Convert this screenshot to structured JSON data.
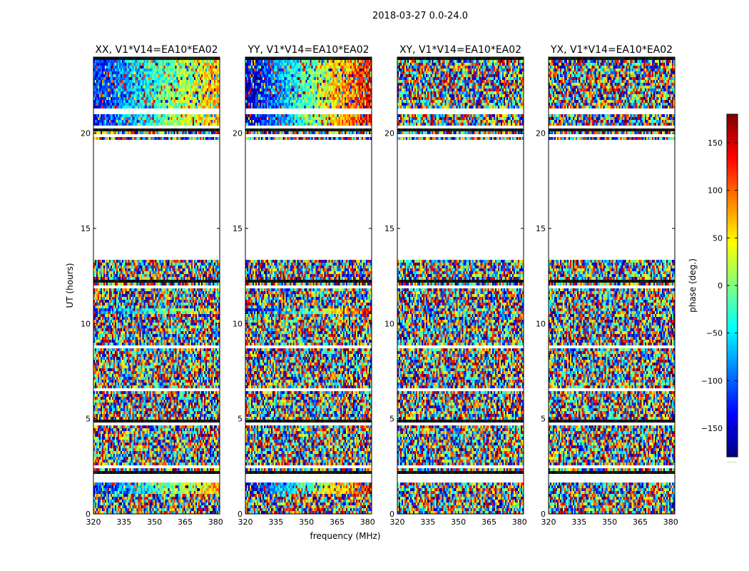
{
  "chart_data": {
    "type": "heatmap",
    "title": "2018-03-27 0.0-24.0",
    "xlabel": "frequency (MHz)",
    "ylabel": "UT (hours)",
    "xlim": [
      320,
      382
    ],
    "ylim": [
      0,
      24
    ],
    "x_ticks": [
      320,
      335,
      350,
      365,
      380
    ],
    "y_ticks": [
      0,
      5,
      10,
      15,
      20
    ],
    "panels": [
      {
        "name": "XX, V1*V14=EA10*EA02",
        "pol": "XX",
        "structure": "gradient"
      },
      {
        "name": "YY, V1*V14=EA10*EA02",
        "pol": "YY",
        "structure": "gradient"
      },
      {
        "name": "XY, V1*V14=EA10*EA02",
        "pol": "XY",
        "structure": "noise"
      },
      {
        "name": "YX, V1*V14=EA10*EA02",
        "pol": "YX",
        "structure": "noise"
      }
    ],
    "flagged_ut_ranges": [
      [
        19.75,
        19.9
      ],
      [
        13.5,
        19.62
      ],
      [
        20.3,
        20.45
      ],
      [
        21.0,
        21.32
      ],
      [
        8.7,
        8.85
      ],
      [
        2.0,
        2.1
      ],
      [
        1.62,
        1.98
      ]
    ],
    "colorbar": {
      "label": "phase (deg.)",
      "range": [
        -180,
        180
      ],
      "ticks": [
        -150,
        -100,
        -50,
        0,
        50,
        100,
        150
      ],
      "tick_labels": [
        "−150",
        "−100",
        "−50",
        "0",
        "50",
        "100",
        "150"
      ],
      "extension_label": "......"
    },
    "colormap": [
      "#00007f",
      "#0000ff",
      "#007fff",
      "#00ffff",
      "#7fff7f",
      "#ffff00",
      "#ff7f00",
      "#ff0000",
      "#7f0000"
    ]
  }
}
